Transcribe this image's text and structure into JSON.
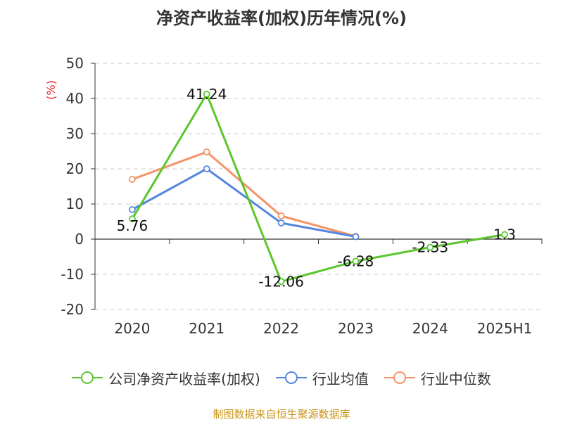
{
  "chart_data": {
    "type": "line",
    "title": "净资产收益率(加权)历年情况(%)",
    "ylabel": "(%)",
    "categories": [
      "2020",
      "2021",
      "2022",
      "2023",
      "2024",
      "2025H1"
    ],
    "ylim": [
      -20,
      50
    ],
    "yticks": [
      50,
      40,
      30,
      20,
      10,
      0,
      -10,
      -20
    ],
    "grid": true,
    "legend_position": "bottom",
    "series": [
      {
        "name": "公司净资产收益率(加权)",
        "color": "#5cc62e",
        "values": [
          5.76,
          41.24,
          -12.06,
          -6.28,
          -2.33,
          1.3
        ],
        "labels": [
          "5.76",
          "41.24",
          "-12.06",
          "-6.28",
          "-2.33",
          "1.3"
        ]
      },
      {
        "name": "行业均值",
        "color": "#5586dd",
        "values": [
          8.4,
          20.0,
          4.6,
          0.7,
          null,
          null
        ]
      },
      {
        "name": "行业中位数",
        "color": "#f59467",
        "values": [
          17.0,
          24.8,
          6.6,
          0.8,
          null,
          null
        ]
      }
    ]
  },
  "source": "制图数据来自恒生聚源数据库"
}
